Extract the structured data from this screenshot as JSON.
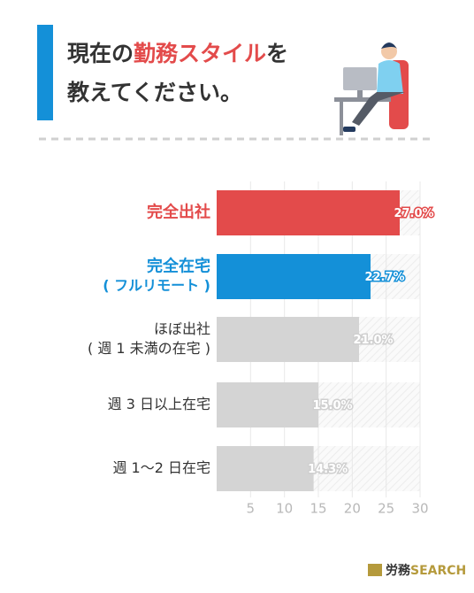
{
  "chart_data": {
    "type": "bar",
    "orientation": "horizontal",
    "title": [
      "現在の",
      "勤務スタイル",
      "を"
    ],
    "title_line2": "教えてください。",
    "categories": [
      [
        "完全出社"
      ],
      [
        "完全在宅",
        "( フルリモート )"
      ],
      [
        "ほぼ出社",
        "( 週 1 未満の在宅 )"
      ],
      [
        "週 3 日以上在宅"
      ],
      [
        "週 1〜2 日在宅"
      ]
    ],
    "values": [
      27.0,
      22.7,
      21.0,
      15.0,
      14.3
    ],
    "value_labels": [
      "27.0%",
      "22.7%",
      "21.0%",
      "15.0%",
      "14.3%"
    ],
    "colors": [
      "#e34b4b",
      "#1490d8",
      "#d4d4d4",
      "#d4d4d4",
      "#d4d4d4"
    ],
    "label_colors": [
      "#e34b4b",
      "#1490d8",
      "#333333",
      "#333333",
      "#333333"
    ],
    "xlim": [
      0,
      30
    ],
    "xticks": [
      5,
      10,
      15,
      20,
      25,
      30
    ],
    "grid": true,
    "logo": [
      "労務",
      "SEARCH"
    ]
  }
}
